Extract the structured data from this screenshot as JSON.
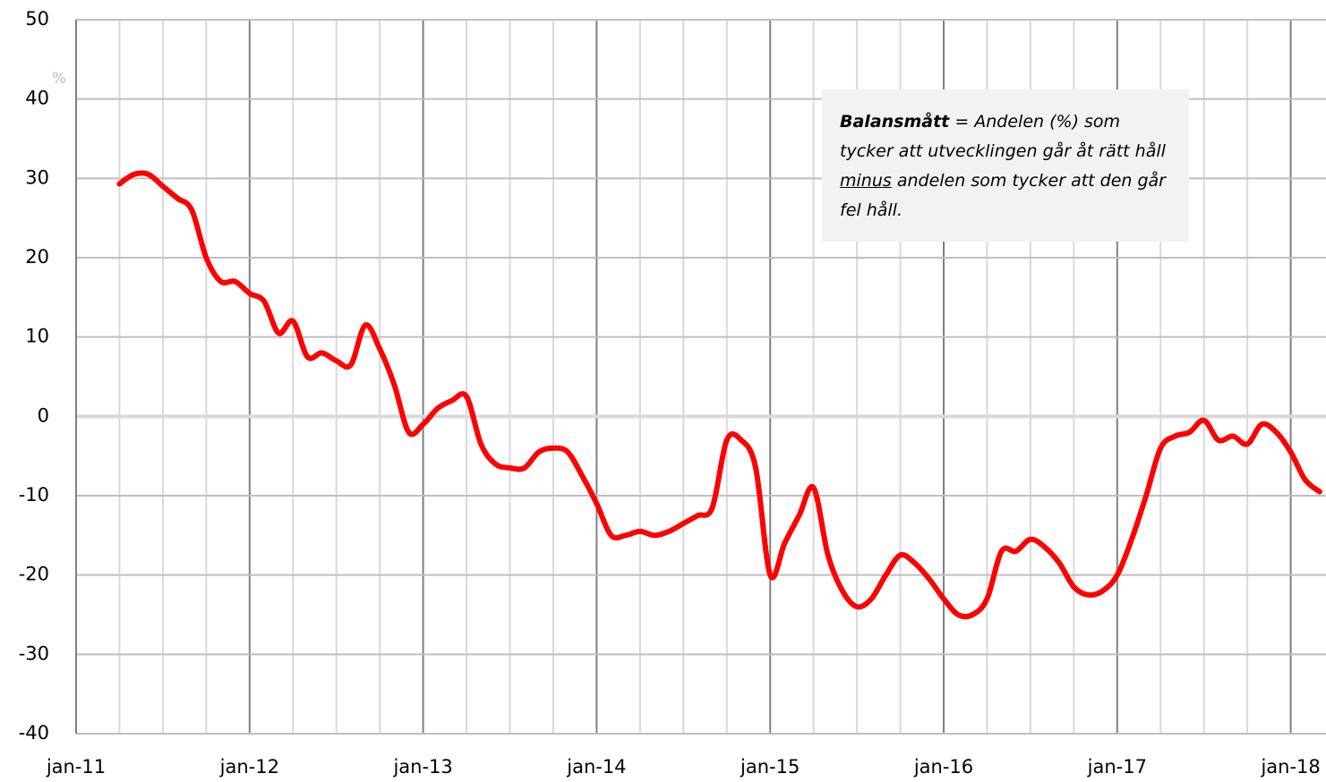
{
  "chart_data": {
    "type": "line",
    "y_unit": "%",
    "annotation": {
      "term": "Balansmått",
      "text_before": "= Andelen (%) som tycker att utvecklingen går åt rätt håll",
      "emphasis": "minus",
      "text_after": "andelen som tycker att den går fel håll."
    },
    "categories": [
      "jan-11",
      null,
      null,
      null,
      null,
      null,
      null,
      null,
      null,
      null,
      null,
      null,
      "jan-12",
      null,
      null,
      null,
      null,
      null,
      null,
      null,
      null,
      null,
      null,
      null,
      "jan-13",
      null,
      null,
      null,
      null,
      null,
      null,
      null,
      null,
      null,
      null,
      null,
      "jan-14",
      null,
      null,
      null,
      null,
      null,
      null,
      null,
      null,
      null,
      null,
      null,
      "jan-15",
      null,
      null,
      null,
      null,
      null,
      null,
      null,
      null,
      null,
      null,
      null,
      "jan-16",
      null,
      null,
      null,
      null,
      null,
      null,
      null,
      null,
      null,
      null,
      null,
      "jan-17",
      null,
      null,
      null,
      null,
      null,
      null,
      null,
      null,
      null,
      null,
      null,
      "jan-18",
      null,
      null
    ],
    "series": [
      {
        "name": "Balansmått",
        "color": "#ff0000",
        "values": [
          null,
          null,
          null,
          29.3,
          30.5,
          30.5,
          29,
          27.5,
          26,
          20,
          17,
          17,
          15.5,
          14.5,
          10.5,
          12,
          7.5,
          8,
          7,
          6.5,
          11.5,
          8.5,
          4,
          -2,
          -1,
          1,
          2,
          2.5,
          -3.5,
          -6,
          -6.5,
          -6.5,
          -4.5,
          -4,
          -4.5,
          -7.5,
          -11,
          -15,
          -15,
          -14.5,
          -15,
          -14.5,
          -13.5,
          -12.5,
          -11.5,
          -3,
          -3,
          -6.5,
          -20,
          -16,
          -12.5,
          -9,
          -17.5,
          -22,
          -24,
          -23,
          -20,
          -17.5,
          -18.5,
          -20.5,
          -23,
          -25,
          -25,
          -23,
          -17,
          -17,
          -15.5,
          -16.5,
          -18.5,
          -21.5,
          -22.5,
          -22,
          -20,
          -15.5,
          -10,
          -4,
          -2.5,
          -2,
          -0.5,
          -3,
          -2.5,
          -3.5,
          -1,
          -2,
          -4.5,
          -8,
          -9.5
        ]
      }
    ],
    "ylim": [
      -40,
      50
    ],
    "yticks": [
      -40,
      -30,
      -20,
      -10,
      0,
      10,
      20,
      30,
      40,
      50
    ],
    "grid": true
  }
}
